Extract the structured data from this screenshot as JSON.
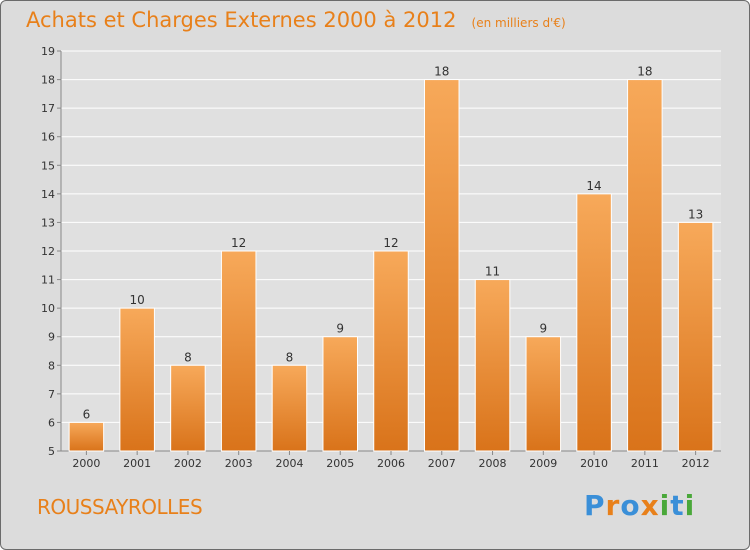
{
  "header": {
    "title": "Achats et Charges Externes 2000 à 2012",
    "subtitle": "(en milliers d'€)"
  },
  "footer": {
    "commune": "ROUSSAYROLLES",
    "logo_text": "Proxiti",
    "logo_letters": [
      "P",
      "r",
      "o",
      "x",
      "i",
      "t",
      "i"
    ],
    "logo_colors": [
      "#3a8fd8",
      "#e8801a",
      "#3a8fd8",
      "#e8801a",
      "#4aa83a",
      "#3a8fd8",
      "#4aa83a"
    ]
  },
  "colors": {
    "bar_top": "#f7a95a",
    "bar_bottom": "#d9731a",
    "bar_stroke": "#ffffff",
    "grid": "#ffffff",
    "plot_bg": "#e0e0e0",
    "accent": "#e8801a"
  },
  "chart_data": {
    "type": "bar",
    "title": "Achats et Charges Externes 2000 à 2012",
    "subtitle": "(en milliers d'€)",
    "categories": [
      "2000",
      "2001",
      "2002",
      "2003",
      "2004",
      "2005",
      "2006",
      "2007",
      "2008",
      "2009",
      "2010",
      "2011",
      "2012"
    ],
    "values": [
      6,
      10,
      8,
      12,
      8,
      9,
      12,
      18,
      11,
      9,
      14,
      18,
      13
    ],
    "ylim": [
      5,
      19
    ],
    "yticks": [
      5,
      6,
      7,
      8,
      9,
      10,
      11,
      12,
      13,
      14,
      15,
      16,
      17,
      18,
      19
    ],
    "grid": true,
    "data_labels": true
  }
}
